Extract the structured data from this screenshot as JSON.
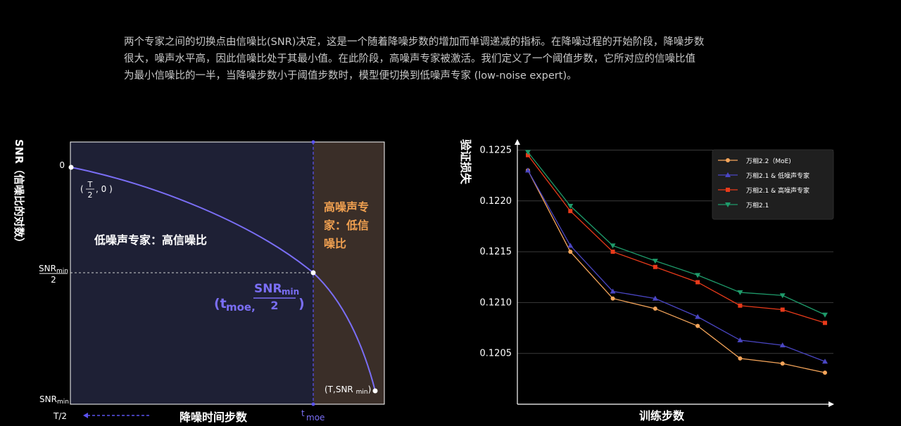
{
  "intro": {
    "lines": [
      "两个专家之间的切换点由信噪比(SNR)决定，这是一个随着降噪步数的增加而单调递减的指标。在降噪过程的开始阶段，降噪步数",
      "很大，噪声水平高，因此信噪比处于其最小值。在此阶段，高噪声专家被激活。我们定义了一个阈值步数，它所对应的信噪比值",
      "为最小信噪比的一半，当降噪步数小于阈值步数时，模型便切换到低噪声专家 (low-noise expert)。"
    ]
  },
  "colors": {
    "low_region": "#1e2035",
    "high_region": "#3a2e28",
    "curve": "#7a6ef5",
    "accent_orange": "#f0a050",
    "grid": "#3a3a3a"
  },
  "chart_data": [
    {
      "type": "line",
      "ylabel": "SNR（信噪比的对数）",
      "xlabel": "降噪时间步数",
      "y_ticks": [
        "0",
        "SNRmin/2",
        "SNRmin"
      ],
      "x_ticks": [
        "T/2",
        "tmoe"
      ],
      "curve_label_start": "(T/2, 0)",
      "curve_label_mid": "(tmoe, SNRmin/2)",
      "curve_label_end": "(T,SNR min)",
      "region_labels": {
        "low": "低噪声专家：高信噪比",
        "high": "高噪声专家：低信噪比"
      },
      "curve": {
        "x": [
          0,
          0.1,
          0.2,
          0.3,
          0.4,
          0.5,
          0.6,
          0.7,
          0.75,
          0.8,
          0.85,
          0.9,
          0.95,
          1.0
        ],
        "y": [
          0,
          -0.03,
          -0.07,
          -0.12,
          -0.18,
          -0.25,
          -0.32,
          -0.4,
          -0.5,
          -0.58,
          -0.68,
          -0.78,
          -0.88,
          -1.0
        ]
      }
    },
    {
      "type": "line",
      "ylabel": "验证损失",
      "xlabel": "训练步数",
      "ylim": [
        0.12,
        0.1226
      ],
      "y_ticks": [
        0.1205,
        0.121,
        0.1215,
        0.122,
        0.1225
      ],
      "legend_position": "top-right",
      "series": [
        {
          "name": "万相2.2（MoE)",
          "color": "#f5a55a",
          "marker": "circle",
          "values": [
            0.1223,
            0.1215,
            0.12104,
            0.12094,
            0.12077,
            0.12045,
            0.1204,
            0.12031
          ]
        },
        {
          "name": "万相2.1 & 低噪声专家",
          "color": "#4a46c4",
          "marker": "triangle-up",
          "values": [
            0.1223,
            0.12156,
            0.12111,
            0.12104,
            0.12086,
            0.12063,
            0.12058,
            0.12042
          ]
        },
        {
          "name": "万相2.1 & 高噪声专家",
          "color": "#e83a1a",
          "marker": "square",
          "values": [
            0.12245,
            0.1219,
            0.1215,
            0.12135,
            0.1212,
            0.12097,
            0.12093,
            0.1208
          ]
        },
        {
          "name": "万相2.1",
          "color": "#1e9a6a",
          "marker": "triangle-down",
          "values": [
            0.12248,
            0.12195,
            0.12156,
            0.12141,
            0.12127,
            0.1211,
            0.12107,
            0.12088
          ]
        }
      ]
    }
  ]
}
